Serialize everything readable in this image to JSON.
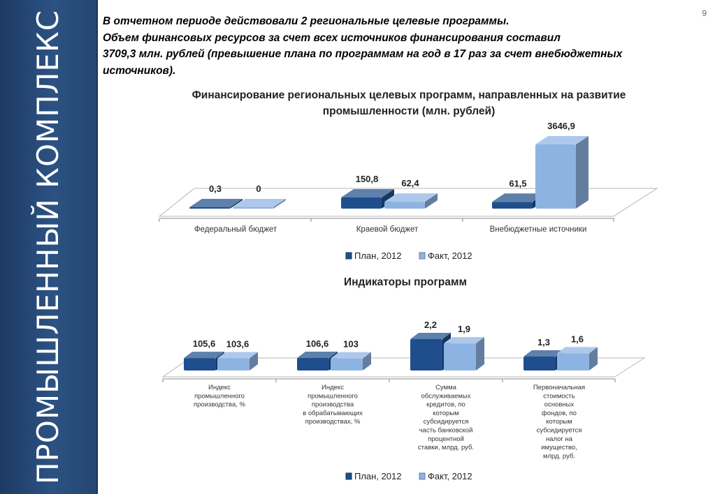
{
  "page_number": "9",
  "sidebar_title": "ПРОМЫШЛЕННЫЙ КОМПЛЕКС",
  "intro": [
    "В отчетном периоде действовали 2 региональные целевые программы.",
    "Объем финансовых ресурсов за счет всех источников финансирования составил",
    "3709,3 млн. рублей (превышение плана по программам на год в 17 раз за счет внебюджетных источников)."
  ],
  "colors": {
    "plan": "#1f4e8c",
    "fact": "#8db3e2",
    "sidebar": "#2c5283"
  },
  "chart_data": [
    {
      "type": "bar",
      "title": "Финансирование региональных целевых программ, направленных на развитие промышленности (млн. рублей)",
      "categories": [
        "Федеральный бюджет",
        "Краевой бюджет",
        "Внебюджетные источники"
      ],
      "series": [
        {
          "name": "План, 2012",
          "values": [
            0.3,
            150.8,
            61.5
          ],
          "labels": [
            "0,3",
            "150,8",
            "61,5"
          ]
        },
        {
          "name": "Факт, 2012",
          "values": [
            0,
            62.4,
            3646.9
          ],
          "labels": [
            "0",
            "62,4",
            "3646,9"
          ]
        }
      ],
      "legend": "bottom",
      "grid": false
    },
    {
      "type": "bar",
      "title": "Индикаторы программ",
      "categories": [
        "Индекс\nпромышленного\nпроизводства, %",
        "Индекс\nпромышленного\nпроизводства\nв обрабатывающих\nпроизводствах, %",
        "Сумма\nобслуживаемых\nкредитов, по\nкоторым\nсубсидируется\nчасть банковской\nпроцентной\nставки, млрд. руб.",
        "Первоначальная\nстоимость\nосновных\nфондов, по\nкоторым\nсубсидируется\nналог на\nимущество,\nмлрд. руб."
      ],
      "series": [
        {
          "name": "План, 2012",
          "values": [
            105.6,
            106.6,
            2.2,
            1.3
          ],
          "labels": [
            "105,6",
            "106,6",
            "2,2",
            "1,3"
          ]
        },
        {
          "name": "Факт, 2012",
          "values": [
            103.6,
            103,
            1.9,
            1.6
          ],
          "labels": [
            "103,6",
            "103",
            "1,9",
            "1,6"
          ]
        }
      ],
      "legend": "bottom",
      "grid": false
    }
  ]
}
